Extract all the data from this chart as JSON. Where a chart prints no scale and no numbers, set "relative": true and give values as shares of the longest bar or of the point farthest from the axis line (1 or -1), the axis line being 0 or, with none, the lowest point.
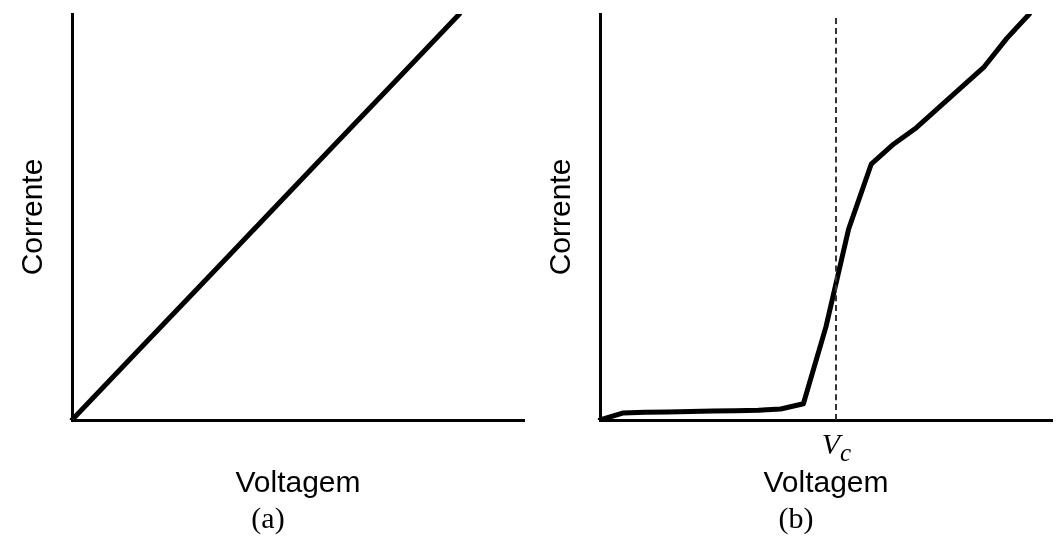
{
  "chart_data": [
    {
      "type": "line",
      "title": "(a)",
      "xlabel": "Voltagem",
      "ylabel": "Corrente",
      "relative": true,
      "grid": false,
      "legend": false,
      "marker": "none",
      "line_style": "solid",
      "categories": [
        null,
        null,
        null,
        null,
        null,
        null,
        null,
        null
      ],
      "series": [
        {
          "color": "#000000",
          "values": [
            0,
            0.167,
            0.333,
            0.5,
            0.667,
            0.833,
            1,
            null
          ]
        }
      ]
    },
    {
      "type": "line",
      "title": "(b)",
      "xlabel": "Voltagem",
      "ylabel": "Corrente",
      "relative": true,
      "grid": false,
      "legend": false,
      "marker": "none",
      "line_style": "solid",
      "categories": [
        null,
        null,
        null,
        null,
        null,
        null,
        null,
        null,
        null,
        null,
        null,
        null,
        null,
        null,
        null,
        null,
        null,
        null,
        null,
        null,
        null
      ],
      "series": [
        {
          "color": "#000000",
          "values": [
            0,
            0.017,
            0.019,
            0.02,
            0.021,
            0.022,
            0.023,
            0.024,
            0.027,
            0.04,
            0.23,
            0.47,
            0.63,
            0.68,
            0.72,
            0.77,
            0.82,
            0.87,
            0.94,
            1.0,
            null
          ]
        }
      ],
      "annotations": [
        "V$_{c}$"
      ]
    }
  ]
}
